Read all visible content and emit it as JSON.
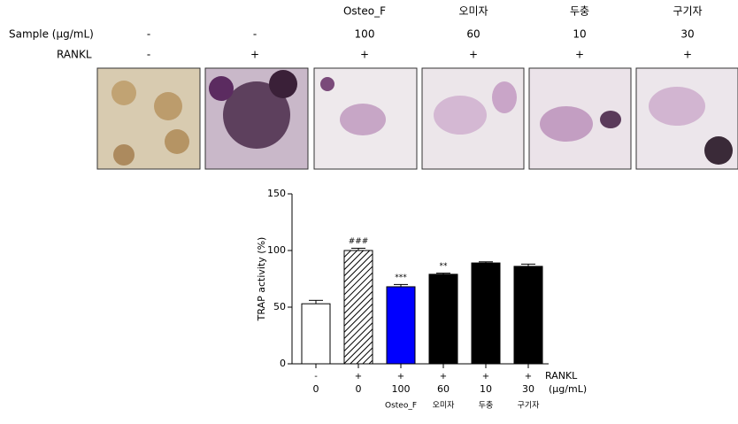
{
  "header": {
    "columns": [
      "Osteo_F",
      "오미자",
      "두충",
      "구기자"
    ],
    "sample_label": "Sample  (μg/mL)",
    "sample_values": [
      "-",
      "-",
      "100",
      "60",
      "10",
      "30"
    ],
    "rankl_label": "RANKL",
    "rankl_values": [
      "-",
      "+",
      "+",
      "+",
      "+",
      "+"
    ]
  },
  "chart_data": {
    "type": "bar",
    "y_label": "TRAP activity (%)",
    "categories": [
      "0",
      "0",
      "100",
      "60",
      "10",
      "30"
    ],
    "values": [
      53,
      100,
      68,
      79,
      89,
      86
    ],
    "errors": [
      3,
      2,
      2,
      1,
      1,
      2
    ],
    "significance": [
      null,
      "###",
      "***",
      "**",
      null,
      null
    ],
    "colors": [
      "#ffffff",
      "#ffffff",
      "#0000ff",
      "#000000",
      "#000000",
      "#000000"
    ],
    "hatch": [
      false,
      true,
      false,
      false,
      false,
      false
    ],
    "rankl_label": "RANKL",
    "rankl": [
      "-",
      "+",
      "+",
      "+",
      "+",
      "+"
    ],
    "unit_label": "(μg/mL)",
    "sample_names": [
      null,
      null,
      "Osteo_F",
      "오미자",
      "두충",
      "구기자"
    ],
    "ylim": [
      0,
      150
    ],
    "yticks": [
      0,
      50,
      100,
      150
    ]
  }
}
